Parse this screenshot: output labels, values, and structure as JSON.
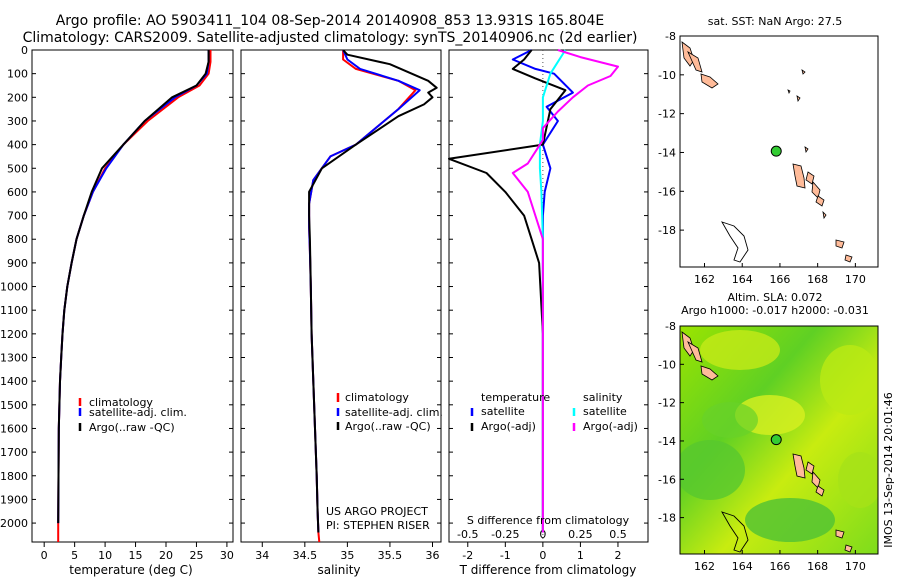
{
  "header": {
    "line1": "Argo profile: AO 5903411_104 08-Sep-2014 20140908_853 13.931S 165.804E",
    "line2": "Climatology: CARS2009. Satellite-adjusted climatology: synTS_20140906.nc (2d earlier)"
  },
  "colors": {
    "climatology": "#ff0000",
    "satellite": "#0000ff",
    "argo": "#000000",
    "s_satellite": "#00ffff",
    "s_argo": "#ff00ff",
    "land": "#ffbb99",
    "float_marker": "#33cc33"
  },
  "chart_data": [
    {
      "id": "temperature",
      "type": "line",
      "xlabel": "temperature (deg C)",
      "ylabel": "",
      "xlim": [
        -2,
        31
      ],
      "ylim": [
        2080,
        0
      ],
      "xticks": [
        0,
        5,
        10,
        15,
        20,
        25,
        30
      ],
      "xtick_labels": [
        "0",
        "5",
        "10",
        "15",
        "20",
        "25",
        "30"
      ],
      "yticks": [
        0,
        100,
        200,
        300,
        400,
        500,
        600,
        700,
        800,
        900,
        1000,
        1100,
        1200,
        1300,
        1400,
        1500,
        1600,
        1700,
        1800,
        1900,
        2000
      ],
      "ytick_labels": [
        "0",
        "100",
        "200",
        "300",
        "400",
        "500",
        "600",
        "700",
        "800",
        "900",
        "1000",
        "1100",
        "1200",
        "1300",
        "1400",
        "1500",
        "1600",
        "1700",
        "1800",
        "1900",
        "2000"
      ],
      "legend": {
        "position": "lower-center",
        "entries": [
          "climatology",
          "satellite-adj. clim.",
          "Argo(..raw -QC)"
        ]
      },
      "series": [
        {
          "name": "climatology",
          "color": "#ff0000",
          "x": [
            27.3,
            27.3,
            27.0,
            25.5,
            22.0,
            17.0,
            13.0,
            10.0,
            8.0,
            6.5,
            5.3,
            4.5,
            3.8,
            3.3,
            3.0,
            2.8,
            2.6,
            2.5,
            2.4,
            2.35,
            2.3,
            2.3
          ],
          "y": [
            0,
            50,
            100,
            150,
            200,
            300,
            400,
            500,
            600,
            700,
            800,
            900,
            1000,
            1100,
            1200,
            1300,
            1400,
            1500,
            1600,
            1800,
            2000,
            2080
          ]
        },
        {
          "name": "satellite-adj. clim.",
          "color": "#0000ff",
          "x": [
            27.0,
            27.0,
            26.7,
            25.0,
            21.5,
            16.5,
            13.0,
            10.2,
            8.0,
            6.5,
            5.3,
            4.5,
            3.8,
            3.3,
            3.0,
            2.8,
            2.6,
            2.5,
            2.4,
            2.35,
            2.3
          ],
          "y": [
            0,
            50,
            100,
            150,
            200,
            300,
            400,
            500,
            600,
            700,
            800,
            900,
            1000,
            1100,
            1200,
            1300,
            1400,
            1500,
            1600,
            1800,
            2000
          ]
        },
        {
          "name": "Argo(..raw -QC)",
          "color": "#000000",
          "x": [
            27.0,
            27.0,
            26.5,
            25.0,
            21.0,
            16.5,
            13.0,
            9.5,
            7.8,
            6.5,
            5.3,
            4.5,
            3.8,
            3.3,
            3.0,
            2.8,
            2.6,
            2.5,
            2.4,
            2.35,
            2.3
          ],
          "y": [
            0,
            50,
            100,
            150,
            200,
            300,
            400,
            500,
            600,
            700,
            800,
            900,
            1000,
            1100,
            1200,
            1300,
            1400,
            1500,
            1600,
            1800,
            2000
          ]
        }
      ]
    },
    {
      "id": "salinity",
      "type": "line",
      "xlabel": "salinity",
      "ylabel": "",
      "xlim": [
        33.75,
        36.1
      ],
      "ylim": [
        2080,
        0
      ],
      "xticks": [
        34,
        34.5,
        35,
        35.5,
        36
      ],
      "xtick_labels": [
        "34",
        "34.5",
        "35",
        "35.5",
        "36"
      ],
      "legend": {
        "position": "lower-center",
        "entries": [
          "climatology",
          "satellite-adj. clim.",
          "Argo(..raw -QC)"
        ]
      },
      "annotation": [
        "US ARGO PROJECT",
        "PI: STEPHEN RISER"
      ],
      "series": [
        {
          "name": "climatology",
          "color": "#ff0000",
          "x": [
            34.95,
            34.95,
            35.1,
            35.6,
            35.8,
            35.6,
            35.1,
            34.8,
            34.6,
            34.55,
            34.55,
            34.56,
            34.57,
            34.58,
            34.6,
            34.62,
            34.64,
            34.65,
            34.66,
            34.67
          ],
          "y": [
            0,
            40,
            80,
            130,
            170,
            250,
            400,
            450,
            550,
            650,
            750,
            850,
            1000,
            1200,
            1400,
            1600,
            1800,
            1950,
            2040,
            2080
          ]
        },
        {
          "name": "satellite-adj. clim.",
          "color": "#0000ff",
          "x": [
            34.95,
            35.0,
            35.15,
            35.6,
            35.85,
            35.6,
            35.1,
            34.8,
            34.6,
            34.55,
            34.55,
            34.56,
            34.57,
            34.58,
            34.6,
            34.62,
            34.64,
            34.65,
            34.66
          ],
          "y": [
            0,
            40,
            80,
            130,
            170,
            250,
            400,
            450,
            550,
            650,
            750,
            850,
            1000,
            1200,
            1400,
            1600,
            1800,
            1950,
            2040
          ]
        },
        {
          "name": "Argo(..raw -QC)",
          "color": "#000000",
          "x": [
            34.95,
            35.0,
            35.5,
            35.95,
            36.05,
            35.95,
            36.0,
            35.9,
            35.6,
            35.1,
            34.7,
            34.55,
            34.55,
            34.56,
            34.57,
            34.58,
            34.6,
            34.62,
            34.64,
            34.65,
            34.66
          ],
          "y": [
            0,
            20,
            60,
            130,
            160,
            180,
            200,
            230,
            280,
            400,
            500,
            600,
            700,
            800,
            1000,
            1200,
            1400,
            1600,
            1800,
            1950,
            2040
          ]
        }
      ]
    },
    {
      "id": "differences",
      "type": "line",
      "xlabel": "T difference from climatology",
      "ylabel": "",
      "xlim": [
        -2.5,
        2.8
      ],
      "ylim": [
        2080,
        0
      ],
      "xticks": [
        -2,
        -1,
        0,
        1,
        2
      ],
      "xtick_labels": [
        "-2",
        "-1",
        "0",
        "1",
        "2"
      ],
      "secondary_xaxis": {
        "label": "S difference from climatology",
        "ticks": [
          -0.5,
          -0.25,
          0,
          0.25,
          0.5
        ],
        "tick_labels": [
          "-0.5",
          "-0.25",
          "0",
          "0.25",
          "0.5"
        ],
        "scale_factor": 4
      },
      "legend": {
        "position": "lower-center",
        "headers": [
          "temperature",
          "salinity"
        ],
        "entries": [
          "satellite",
          "Argo(-adj)",
          "satellite",
          "Argo(-adj)"
        ]
      },
      "series": [
        {
          "name": "T satellite",
          "color": "#0000ff",
          "unit": "degC",
          "x": [
            -0.3,
            -0.8,
            -0.2,
            0.3,
            0.8,
            0.1,
            0.4,
            0.0,
            0.2,
            0.05,
            0.0,
            0.0,
            0.0,
            0.0,
            0.0,
            0.0
          ],
          "y": [
            0,
            40,
            80,
            100,
            180,
            240,
            300,
            400,
            500,
            600,
            700,
            800,
            1000,
            1400,
            1800,
            2040
          ]
        },
        {
          "name": "T Argo(-adj)",
          "color": "#000000",
          "unit": "degC",
          "x": [
            -0.3,
            -0.5,
            -0.8,
            -0.2,
            0.6,
            0.2,
            0.0,
            -2.5,
            -1.5,
            -1.0,
            -0.5,
            -0.3,
            -0.1,
            0.0,
            0.0,
            0.0
          ],
          "y": [
            0,
            40,
            80,
            120,
            170,
            250,
            400,
            460,
            520,
            600,
            700,
            800,
            900,
            1200,
            1600,
            2040
          ]
        },
        {
          "name": "S satellite",
          "color": "#00ffff",
          "unit": "psu",
          "x": [
            0.15,
            0.1,
            0.05,
            0.0,
            0.0,
            -0.02,
            -0.02,
            -0.01,
            0.0,
            0.0,
            0.0,
            0.0,
            0.0
          ],
          "y": [
            0,
            50,
            100,
            200,
            300,
            400,
            500,
            600,
            800,
            1000,
            1400,
            1800,
            2040
          ]
        },
        {
          "name": "S Argo(-adj)",
          "color": "#ff00ff",
          "unit": "psu",
          "x": [
            0.1,
            0.25,
            0.5,
            0.45,
            0.3,
            0.2,
            0.1,
            0.0,
            0.0,
            -0.05,
            -0.1,
            -0.2,
            -0.1,
            0.0,
            0.0,
            0.0
          ],
          "y": [
            0,
            30,
            70,
            110,
            150,
            200,
            260,
            330,
            380,
            430,
            480,
            520,
            600,
            800,
            1200,
            2040
          ]
        }
      ]
    },
    {
      "id": "sst_map",
      "type": "map",
      "title": "sat. SST: NaN Argo: 27.5",
      "xlim": [
        160.7,
        171.2
      ],
      "ylim": [
        -19.9,
        -8
      ],
      "xticks": [
        162,
        164,
        166,
        168,
        170
      ],
      "xtick_labels": [
        "162",
        "164",
        "166",
        "168",
        "170"
      ],
      "yticks": [
        -8,
        -10,
        -12,
        -14,
        -16,
        -18
      ],
      "ytick_labels": [
        "-8",
        "-10",
        "-12",
        "-14",
        "-16",
        "-18"
      ],
      "float_position": {
        "lon": 165.804,
        "lat": -13.931
      }
    },
    {
      "id": "sla_map",
      "type": "map",
      "title_lines": [
        "Altim. SLA: 0.072",
        "Argo h1000: -0.017 h2000: -0.031"
      ],
      "xlim": [
        160.7,
        171.2
      ],
      "ylim": [
        -19.9,
        -8
      ],
      "xticks": [
        162,
        164,
        166,
        168,
        170
      ],
      "xtick_labels": [
        "162",
        "164",
        "166",
        "168",
        "170"
      ],
      "yticks": [
        -8,
        -10,
        -12,
        -14,
        -16,
        -18
      ],
      "ytick_labels": [
        "-8",
        "-10",
        "-12",
        "-14",
        "-16",
        "-18"
      ],
      "float_position": {
        "lon": 165.804,
        "lat": -13.931
      }
    }
  ],
  "legend_labels": {
    "climatology": "climatology",
    "satellite_adj": "satellite-adj. clim.",
    "argo_raw": "Argo(..raw -QC)",
    "temperature": "temperature",
    "salinity": "salinity",
    "satellite": "satellite",
    "argo_adj": "Argo(-adj)"
  },
  "credits": {
    "project": "US ARGO PROJECT",
    "pi": "PI: STEPHEN RISER",
    "imos": "IMOS 13-Sep-2014 20:01:46"
  }
}
